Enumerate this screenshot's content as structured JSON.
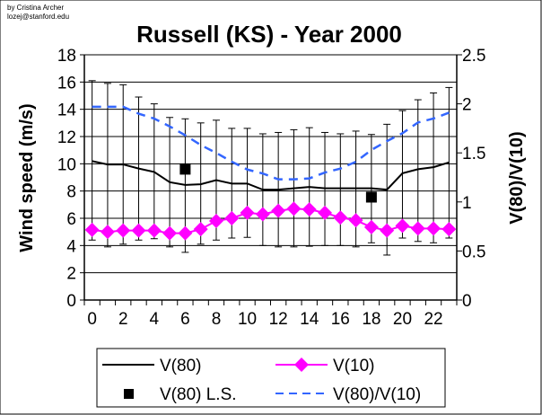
{
  "credit": {
    "line1": "by Cristina Archer",
    "line2": "lozej@stanford.edu"
  },
  "chart_data": {
    "type": "line",
    "title": "Russell (KS) - Year 2000",
    "xlabel": "",
    "ylabel": "Wind speed (m/s)",
    "y2label": "V(80)/V(10)",
    "ylim": [
      0,
      18
    ],
    "y2lim": [
      0,
      2.5
    ],
    "yticks": [
      0,
      2,
      4,
      6,
      8,
      10,
      12,
      14,
      16,
      18
    ],
    "y2ticks": [
      "0",
      "0.5",
      "1",
      "1.5",
      "2",
      "2.5"
    ],
    "xticks": [
      0,
      2,
      4,
      6,
      8,
      10,
      12,
      14,
      16,
      18,
      20,
      22
    ],
    "x": [
      0,
      1,
      2,
      3,
      4,
      5,
      6,
      7,
      8,
      9,
      10,
      11,
      12,
      13,
      14,
      15,
      16,
      17,
      18,
      19,
      20,
      21,
      22,
      23
    ],
    "grid": true,
    "legend_position": "bottom",
    "colors": {
      "v80": "#000000",
      "v10": "#ff00ff",
      "ls": "#000000",
      "ratio": "#3366ff"
    },
    "series": [
      {
        "name": "V(80)",
        "axis": "left",
        "values": [
          10.2,
          9.95,
          9.95,
          9.65,
          9.4,
          8.65,
          8.45,
          8.5,
          8.8,
          8.55,
          8.55,
          8.1,
          8.1,
          8.2,
          8.3,
          8.2,
          8.2,
          8.2,
          8.2,
          8.1,
          9.3,
          9.6,
          9.75,
          10.1
        ],
        "error_high": [
          16.1,
          15.9,
          15.8,
          14.9,
          14.4,
          13.4,
          13.3,
          13.0,
          13.2,
          12.6,
          12.6,
          12.2,
          12.3,
          12.5,
          12.65,
          12.3,
          12.2,
          12.4,
          12.15,
          12.9,
          13.9,
          14.7,
          15.2,
          15.6
        ],
        "error_low": [
          4.4,
          3.9,
          4.1,
          4.4,
          4.5,
          3.9,
          3.5,
          4.1,
          4.4,
          4.55,
          4.6,
          4.0,
          3.9,
          3.9,
          3.95,
          4.0,
          4.0,
          3.9,
          4.2,
          3.3,
          4.55,
          4.3,
          4.2,
          4.55
        ]
      },
      {
        "name": "V(10)",
        "axis": "left",
        "values": [
          5.15,
          5.0,
          5.1,
          5.1,
          5.1,
          4.9,
          4.9,
          5.2,
          5.8,
          6.0,
          6.4,
          6.3,
          6.55,
          6.7,
          6.65,
          6.4,
          6.05,
          5.85,
          5.35,
          5.1,
          5.45,
          5.25,
          5.25,
          5.2
        ]
      },
      {
        "name": "V(80) L.S.",
        "axis": "left",
        "points": [
          {
            "x": 6,
            "y": 9.6
          },
          {
            "x": 18,
            "y": 7.55
          }
        ]
      },
      {
        "name": "V(80)/V(10)",
        "axis": "right",
        "values": [
          1.97,
          1.97,
          1.97,
          1.9,
          1.85,
          1.77,
          1.68,
          1.58,
          1.5,
          1.41,
          1.33,
          1.29,
          1.23,
          1.23,
          1.24,
          1.3,
          1.34,
          1.41,
          1.53,
          1.62,
          1.7,
          1.81,
          1.85,
          1.91
        ]
      }
    ]
  }
}
